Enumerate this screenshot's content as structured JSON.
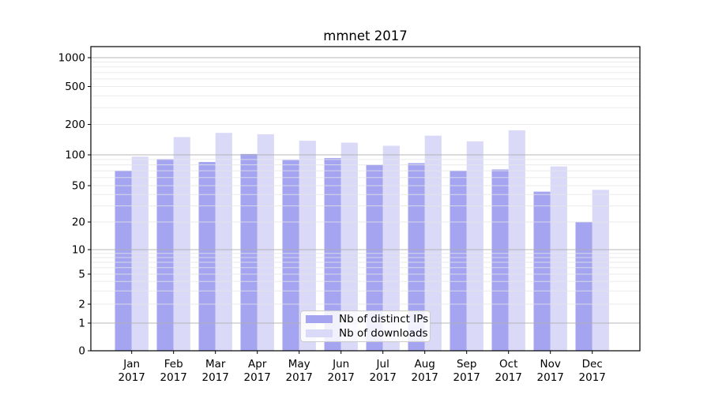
{
  "chart_data": {
    "type": "bar",
    "title": "mmnet 2017",
    "x_tick_months": [
      "Jan",
      "Feb",
      "Mar",
      "Apr",
      "May",
      "Jun",
      "Jul",
      "Aug",
      "Sep",
      "Oct",
      "Nov",
      "Dec"
    ],
    "x_tick_year": "2017",
    "series": [
      {
        "name": "Nb of distinct IPs",
        "color": "#a4a4f0",
        "values": [
          70,
          91,
          85,
          102,
          89,
          93,
          80,
          83,
          70,
          72,
          43,
          20
        ]
      },
      {
        "name": "Nb of downloads",
        "color": "#dadaf8",
        "values": [
          96,
          150,
          165,
          160,
          138,
          132,
          123,
          155,
          136,
          175,
          77,
          45
        ]
      }
    ],
    "yscale": "symlog",
    "y_tick_labels": [
      "0",
      "1",
      "2",
      "5",
      "10",
      "20",
      "50",
      "100",
      "200",
      "500",
      "1000"
    ],
    "ylim": [
      0,
      1300
    ],
    "grid": "major+minor",
    "legend_position": "lower-center",
    "colors": {
      "major_grid": "#b0b0b0",
      "minor_grid": "#e6e6e6",
      "spine": "#000000",
      "text": "#000000"
    }
  }
}
